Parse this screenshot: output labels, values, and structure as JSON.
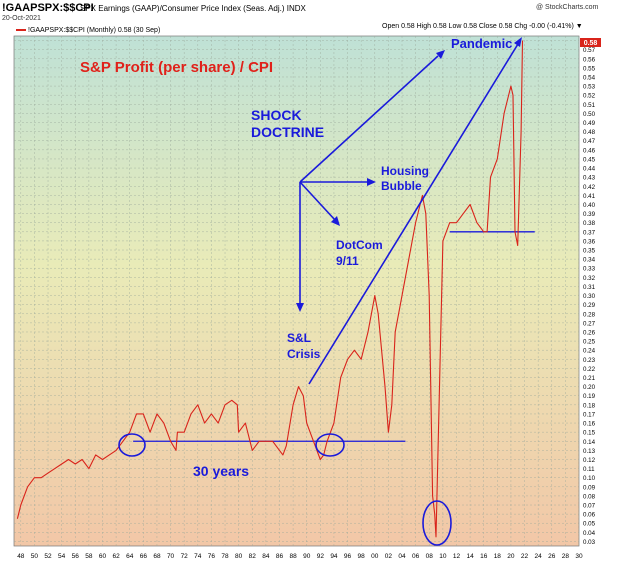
{
  "header": {
    "ticker": "!GAAPSPX:$$CPI",
    "description": "SPX Earnings (GAAP)/Consumer Price Index (Seas. Adj.) INDX",
    "date": "20-Oct-2021",
    "credit": "@ StockCharts.com",
    "ohlc": "Open 0.58  High 0.58  Low 0.58  Close 0.58  Chg -0.00 (-0.41%) ▼",
    "legend": "!GAAPSPX:$$CPI (Monthly) 0.58 (30 Sep)"
  },
  "colors": {
    "line": "#d9241b",
    "annotation": "#1a1adb",
    "title": "#e0211a",
    "last_value_box": "#d9241b"
  },
  "annotations": {
    "title": "S&P Profit (per share) / CPI",
    "shock_doctrine_line1": "SHOCK",
    "shock_doctrine_line2": "DOCTRINE",
    "housing_line1": "Housing",
    "housing_line2": "Bubble",
    "dotcom_line1": "DotCom",
    "dotcom_line2": "9/11",
    "sl_line1": "S&L",
    "sl_line2": "Crisis",
    "pandemic": "Pandemic",
    "thirty_years": "30 years"
  },
  "last_value_label": "0.58",
  "chart_data": {
    "type": "line",
    "title": "",
    "xlabel": "",
    "ylabel": "",
    "x_unit": "year",
    "xlim": [
      1947,
      2030
    ],
    "ylim": [
      0.025,
      0.585
    ],
    "x_ticks": [
      "48",
      "50",
      "52",
      "54",
      "56",
      "58",
      "60",
      "62",
      "64",
      "66",
      "68",
      "70",
      "72",
      "74",
      "76",
      "78",
      "80",
      "82",
      "84",
      "86",
      "88",
      "90",
      "92",
      "94",
      "96",
      "98",
      "00",
      "02",
      "04",
      "06",
      "08",
      "10",
      "12",
      "14",
      "16",
      "18",
      "20",
      "22",
      "24",
      "26",
      "28",
      "30"
    ],
    "y_ticks": [
      "0.03",
      "0.04",
      "0.05",
      "0.06",
      "0.07",
      "0.08",
      "0.09",
      "0.10",
      "0.11",
      "0.12",
      "0.13",
      "0.14",
      "0.15",
      "0.16",
      "0.17",
      "0.18",
      "0.19",
      "0.20",
      "0.21",
      "0.22",
      "0.23",
      "0.24",
      "0.25",
      "0.26",
      "0.27",
      "0.28",
      "0.29",
      "0.30",
      "0.31",
      "0.32",
      "0.33",
      "0.34",
      "0.35",
      "0.36",
      "0.37",
      "0.38",
      "0.39",
      "0.40",
      "0.41",
      "0.42",
      "0.43",
      "0.44",
      "0.45",
      "0.46",
      "0.47",
      "0.48",
      "0.49",
      "0.50",
      "0.51",
      "0.52",
      "0.53",
      "0.54",
      "0.55",
      "0.56",
      "0.57",
      "0.58"
    ],
    "grid": true,
    "series": [
      {
        "x": [
          1947.5,
          1948,
          1949,
          1950,
          1951,
          1952,
          1953,
          1954,
          1955,
          1956,
          1957,
          1958,
          1959,
          1960,
          1961,
          1962,
          1963,
          1964,
          1965,
          1966,
          1966.5,
          1967,
          1967.5,
          1968,
          1969,
          1970,
          1970.8,
          1971,
          1972,
          1973,
          1974,
          1975,
          1976,
          1977,
          1978,
          1979,
          1979.8,
          1980,
          1981,
          1982,
          1983,
          1984,
          1985,
          1986,
          1986.5,
          1987,
          1988,
          1988.8,
          1989.5,
          1990,
          1991,
          1992,
          1992.5,
          1993,
          1994,
          1995,
          1996,
          1997,
          1998,
          1999,
          2000,
          2000.5,
          2001,
          2001.5,
          2002,
          2002.5,
          2003,
          2004,
          2005,
          2006,
          2007,
          2007.5,
          2008,
          2008.5,
          2008.8,
          2009,
          2009.5,
          2010,
          2010.5,
          2011,
          2012,
          2013,
          2014,
          2015,
          2016,
          2016.5,
          2017,
          2018,
          2019,
          2020,
          2020.3,
          2020.6,
          2021,
          2021.5,
          2021.7
        ],
        "y": [
          0.055,
          0.07,
          0.09,
          0.1,
          0.1,
          0.105,
          0.11,
          0.115,
          0.12,
          0.115,
          0.12,
          0.11,
          0.125,
          0.12,
          0.125,
          0.13,
          0.14,
          0.15,
          0.17,
          0.17,
          0.16,
          0.15,
          0.16,
          0.17,
          0.16,
          0.14,
          0.13,
          0.15,
          0.15,
          0.17,
          0.18,
          0.16,
          0.17,
          0.16,
          0.18,
          0.185,
          0.18,
          0.15,
          0.16,
          0.13,
          0.14,
          0.14,
          0.14,
          0.13,
          0.125,
          0.135,
          0.18,
          0.2,
          0.19,
          0.16,
          0.14,
          0.12,
          0.125,
          0.14,
          0.16,
          0.21,
          0.23,
          0.24,
          0.23,
          0.26,
          0.3,
          0.28,
          0.24,
          0.2,
          0.15,
          0.18,
          0.26,
          0.3,
          0.34,
          0.38,
          0.41,
          0.39,
          0.3,
          0.08,
          0.06,
          0.035,
          0.2,
          0.36,
          0.37,
          0.38,
          0.38,
          0.39,
          0.4,
          0.38,
          0.37,
          0.37,
          0.43,
          0.45,
          0.5,
          0.53,
          0.52,
          0.37,
          0.355,
          0.48,
          0.58
        ]
      }
    ]
  }
}
